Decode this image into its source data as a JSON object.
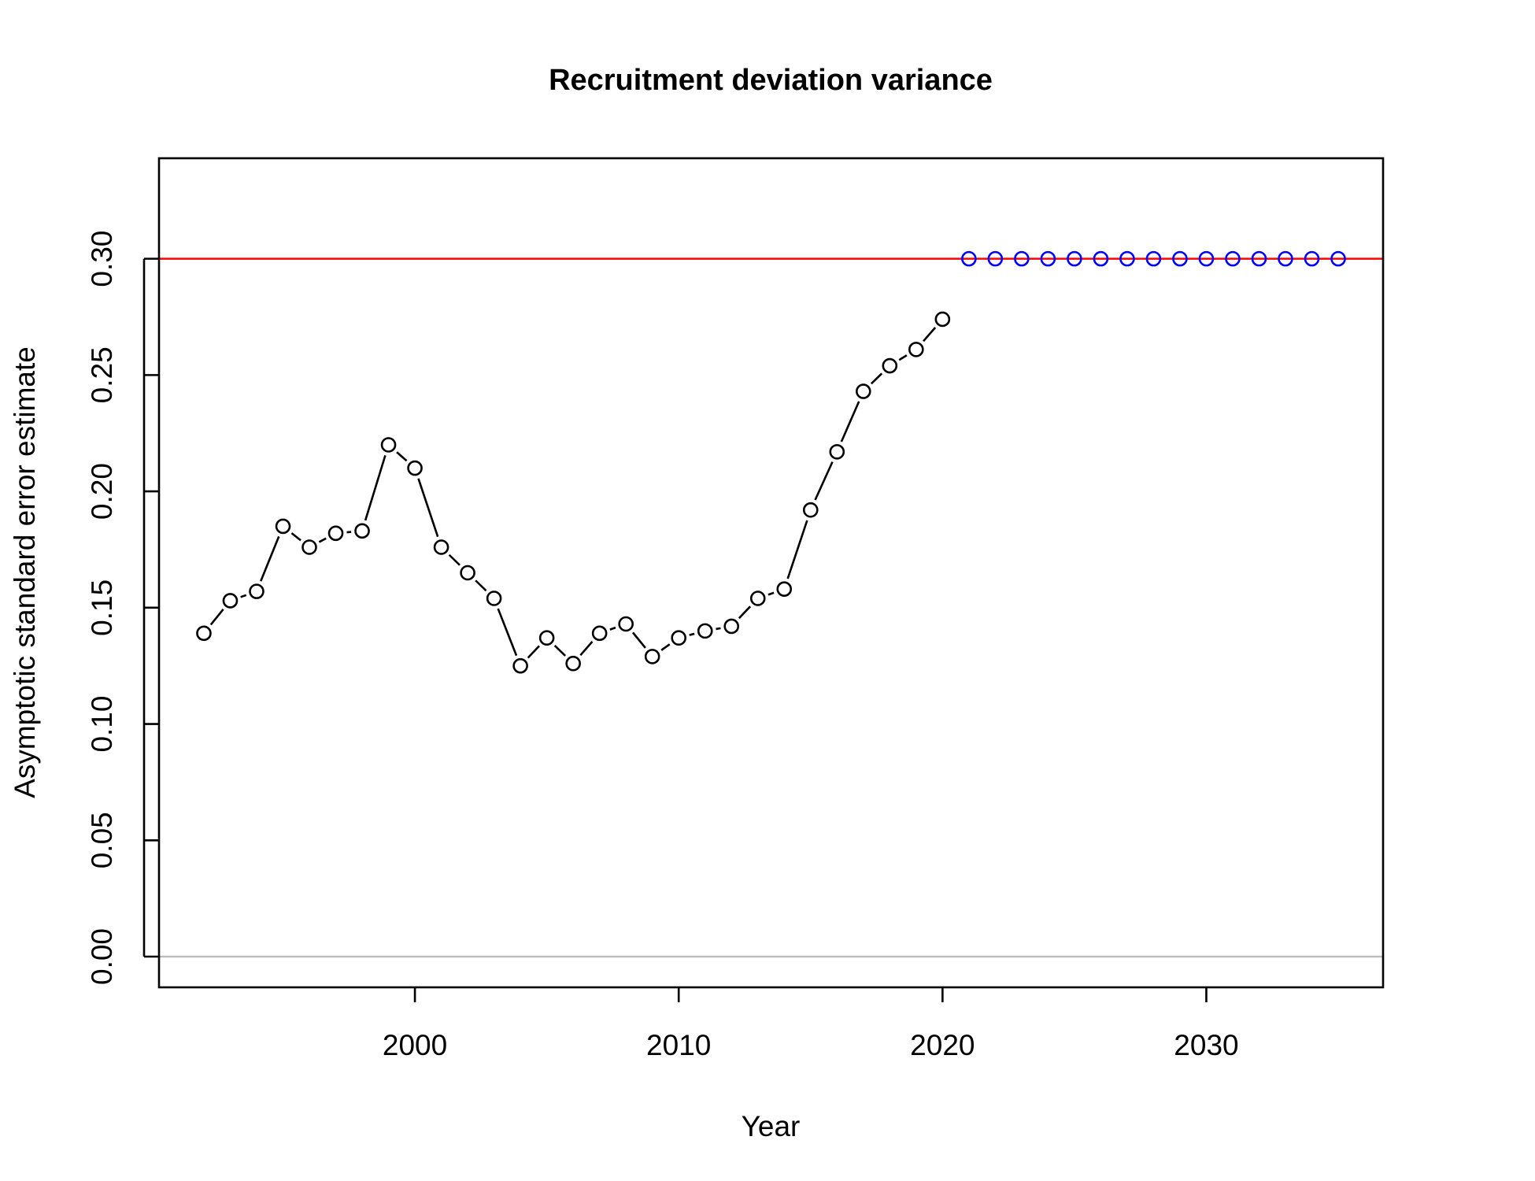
{
  "chart_data": {
    "type": "scatter",
    "title": "Recruitment deviation variance",
    "xlabel": "Year",
    "ylabel": "Asymptotic standard error estimate",
    "xlim": [
      1990.3,
      2036.7
    ],
    "ylim": [
      -0.0132,
      0.3432
    ],
    "x_ticks": [
      2000,
      2010,
      2020,
      2030
    ],
    "y_ticks": [
      0.0,
      0.05,
      0.1,
      0.15,
      0.2,
      0.25,
      0.3
    ],
    "y_tick_labels": [
      "0.00",
      "0.05",
      "0.10",
      "0.15",
      "0.20",
      "0.25",
      "0.30"
    ],
    "grid": false,
    "reference_lines": [
      {
        "y": 0.3,
        "color": "#ff0000"
      },
      {
        "y": 0.0,
        "color": "#bebebe"
      }
    ],
    "series": [
      {
        "style": "points-and-lines",
        "color": "#000000",
        "x": [
          1992,
          1993,
          1994,
          1995,
          1996,
          1997,
          1998,
          1999,
          2000,
          2001,
          2002,
          2003,
          2004,
          2005,
          2006,
          2007,
          2008,
          2009,
          2010,
          2011,
          2012,
          2013,
          2014,
          2015,
          2016,
          2017,
          2018,
          2019,
          2020
        ],
        "y": [
          0.139,
          0.153,
          0.157,
          0.185,
          0.176,
          0.182,
          0.183,
          0.22,
          0.21,
          0.176,
          0.165,
          0.154,
          0.125,
          0.137,
          0.126,
          0.139,
          0.143,
          0.129,
          0.137,
          0.14,
          0.142,
          0.154,
          0.158,
          0.192,
          0.217,
          0.243,
          0.254,
          0.261,
          0.274
        ]
      },
      {
        "style": "points",
        "color": "#0000ff",
        "x": [
          2021,
          2022,
          2023,
          2024,
          2025,
          2026,
          2027,
          2028,
          2029,
          2030,
          2031,
          2032,
          2033,
          2034,
          2035
        ],
        "y": [
          0.3,
          0.3,
          0.3,
          0.3,
          0.3,
          0.3,
          0.3,
          0.3,
          0.3,
          0.3,
          0.3,
          0.3,
          0.3,
          0.3,
          0.3
        ]
      }
    ]
  }
}
